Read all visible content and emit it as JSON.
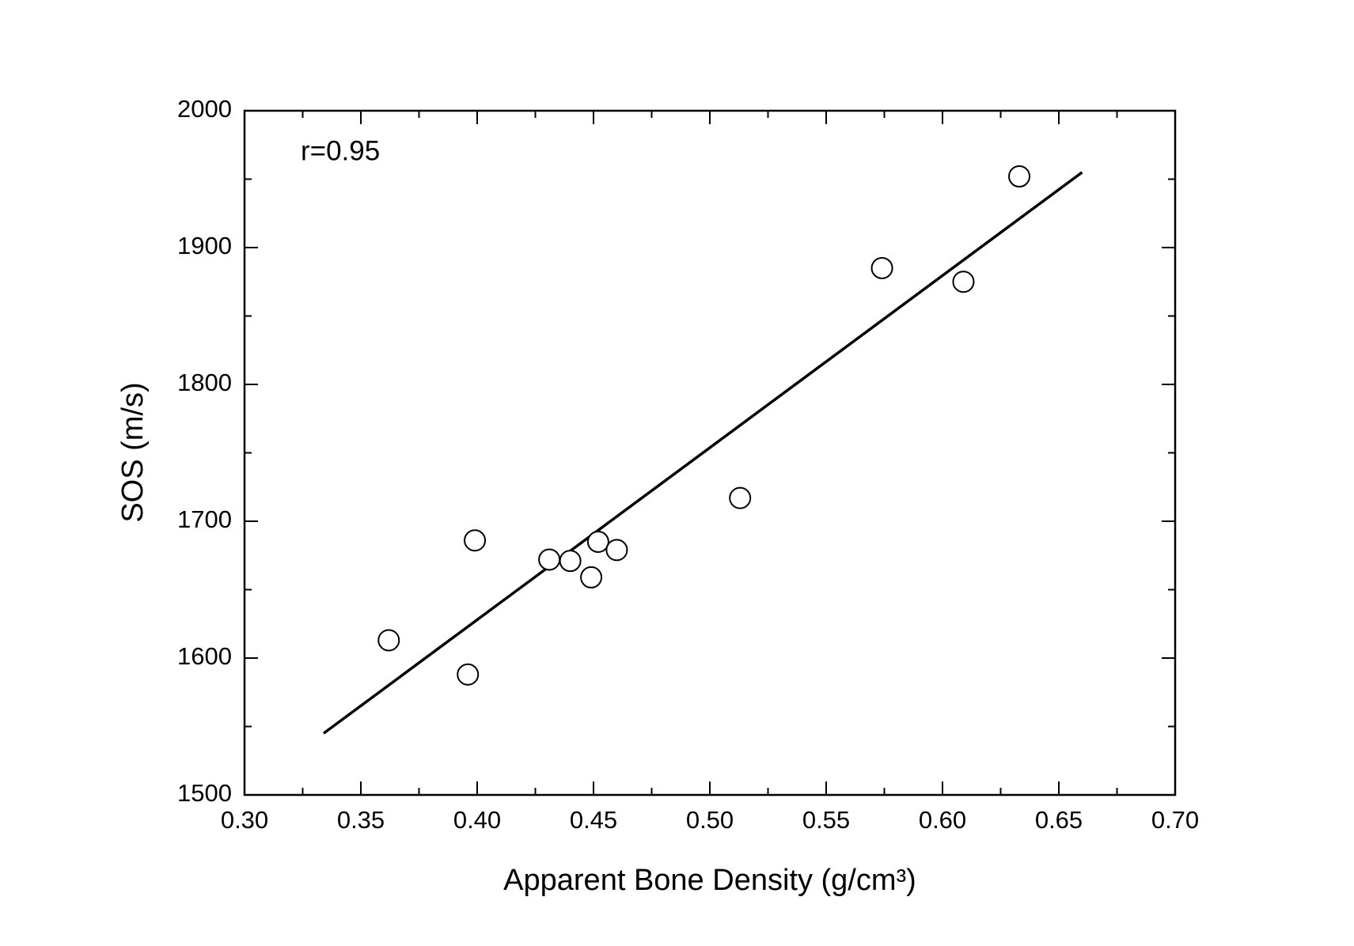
{
  "chart_data": {
    "type": "scatter",
    "xlabel": "Apparent Bone Density (g/cm³)",
    "ylabel": "SOS (m/s)",
    "annotation": "r=0.95",
    "x": [
      0.362,
      0.396,
      0.399,
      0.431,
      0.44,
      0.449,
      0.452,
      0.46,
      0.513,
      0.574,
      0.609,
      0.633
    ],
    "values": [
      1613,
      1588,
      1686,
      1672,
      1671,
      1659,
      1685,
      1679,
      1717,
      1885,
      1875,
      1952
    ],
    "fit_line": {
      "x": [
        0.334,
        0.66
      ],
      "values": [
        1545,
        1955
      ]
    },
    "color": "#000000",
    "xlim": [
      0.3,
      0.7
    ],
    "ylim": [
      1500,
      2000
    ],
    "xticks": [
      {
        "value": 0.3,
        "label": "0.30"
      },
      0.35,
      {
        "value": 0.4,
        "label": "0.40"
      },
      0.45,
      {
        "value": 0.5,
        "label": "0.50"
      },
      0.55,
      {
        "value": 0.6,
        "label": "0.60"
      },
      0.65,
      {
        "value": 0.7,
        "label": "0.70"
      }
    ],
    "yticks": [
      1500,
      1600,
      1700,
      1800,
      1900,
      2000
    ]
  }
}
